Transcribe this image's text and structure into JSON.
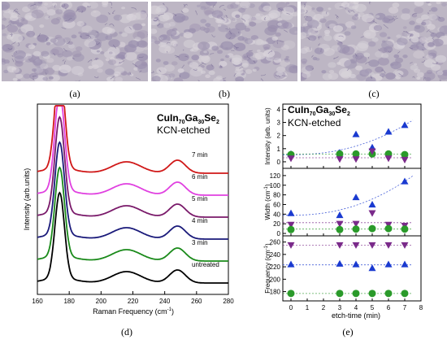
{
  "panels": {
    "a": {
      "caption": "(a)"
    },
    "b": {
      "caption": "(b)"
    },
    "c": {
      "caption": "(c)"
    },
    "d": {
      "caption": "(d)"
    },
    "e": {
      "caption": "(e)"
    }
  },
  "sample": {
    "base": "CuIn",
    "sub1": "70",
    "mid": "Ga",
    "sub2": "30",
    "end": "Se",
    "sub3": "2",
    "treatment": "KCN-etched"
  },
  "chart_data": [
    {
      "id": "d",
      "type": "line",
      "xlabel": "Raman Frequency (cm",
      "xlabel_sup": "-1",
      "xlabel_end": ")",
      "ylabel": "Intensity (arb.units)",
      "xlim": [
        160,
        280
      ],
      "xticks": [
        160,
        180,
        200,
        220,
        240,
        260,
        280
      ],
      "series": [
        {
          "name": "untreated",
          "color": "#000000",
          "offset": 0
        },
        {
          "name": "3 min",
          "color": "#1a8a1a",
          "offset": 1
        },
        {
          "name": "4 min",
          "color": "#1a1a7a",
          "offset": 2
        },
        {
          "name": "5 min",
          "color": "#7a1a6a",
          "offset": 3
        },
        {
          "name": "6 min",
          "color": "#e040e0",
          "offset": 4
        },
        {
          "name": "7 min",
          "color": "#d01818",
          "offset": 5
        }
      ],
      "peaks_cm": [
        174,
        216,
        248
      ]
    },
    {
      "id": "e",
      "type": "scatter",
      "xlabel": "etch-time (min)",
      "xlim": [
        -0.5,
        8
      ],
      "xticks": [
        0,
        1,
        2,
        3,
        4,
        5,
        6,
        7,
        8
      ],
      "subplots": [
        {
          "ylabel": "Intensity (arb. units)",
          "ylim": [
            -0.5,
            4.4
          ],
          "yticks": [
            0,
            1,
            2,
            3,
            4
          ],
          "series": [
            {
              "marker": "triangle-up",
              "color": "#1a3ad0",
              "x": [
                0,
                3,
                4,
                5,
                6,
                7
              ],
              "y": [
                0.6,
                0.7,
                2.1,
                1.1,
                2.3,
                2.8
              ]
            },
            {
              "marker": "circle",
              "color": "#2a9a2a",
              "x": [
                0,
                3,
                4,
                5,
                6,
                7
              ],
              "y": [
                0.55,
                0.6,
                0.6,
                0.6,
                0.6,
                0.55
              ]
            },
            {
              "marker": "triangle-down",
              "color": "#7a2a8a",
              "x": [
                0,
                3,
                4,
                5,
                6,
                7
              ],
              "y": [
                0.25,
                0.2,
                0.2,
                0.8,
                0.25,
                0.15
              ]
            }
          ]
        },
        {
          "ylabel": "Width (cm",
          "ylabel_sup": "-1",
          "ylabel_end": ")",
          "ylim": [
            -5,
            135
          ],
          "yticks": [
            0,
            20,
            40,
            60,
            80,
            100,
            120
          ],
          "series": [
            {
              "marker": "triangle-up",
              "color": "#1a3ad0",
              "x": [
                0,
                3,
                4,
                5,
                7
              ],
              "y": [
                42,
                38,
                75,
                60,
                108
              ]
            },
            {
              "marker": "triangle-down",
              "color": "#7a2a8a",
              "x": [
                0,
                3,
                4,
                5,
                6,
                7
              ],
              "y": [
                18,
                20,
                20,
                42,
                18,
                16
              ]
            },
            {
              "marker": "circle",
              "color": "#2a9a2a",
              "x": [
                0,
                3,
                4,
                5,
                6,
                7
              ],
              "y": [
                8,
                8,
                9,
                10,
                10,
                9
              ]
            }
          ]
        },
        {
          "ylabel": "Frequency (cm",
          "ylabel_sup": "-1",
          "ylabel_end": ")",
          "ylim": [
            165,
            270
          ],
          "yticks": [
            180,
            200,
            220,
            240,
            260
          ],
          "series": [
            {
              "marker": "triangle-down",
              "color": "#7a2a8a",
              "x": [
                0,
                3,
                4,
                5,
                6,
                7
              ],
              "y": [
                255,
                255,
                255,
                255,
                255,
                255
              ]
            },
            {
              "marker": "triangle-up",
              "color": "#1a3ad0",
              "x": [
                0,
                3,
                4,
                5,
                6,
                7
              ],
              "y": [
                224,
                225,
                224,
                218,
                224,
                224
              ]
            },
            {
              "marker": "circle",
              "color": "#2a9a2a",
              "x": [
                0,
                3,
                4,
                5,
                6,
                7
              ],
              "y": [
                177,
                177,
                177,
                177,
                177,
                177
              ]
            }
          ]
        }
      ]
    }
  ]
}
